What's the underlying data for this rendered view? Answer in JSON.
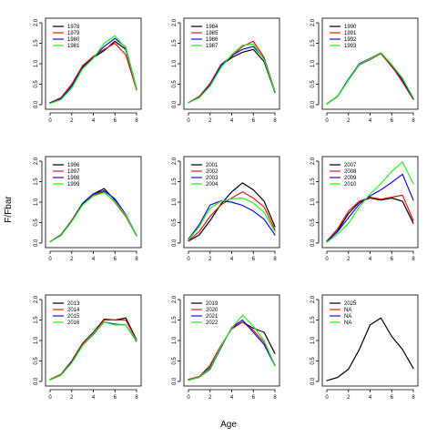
{
  "labels": {
    "xlabel": "Age",
    "ylabel": "F/Fbar"
  },
  "chart_data": {
    "type": "line",
    "grid": false,
    "legend_placement": "top-left",
    "xlabel": "Age",
    "ylabel": "F/Fbar",
    "xlim": [
      0,
      8
    ],
    "ylim": [
      0,
      2
    ],
    "x_ticks": [
      "0",
      "2",
      "4",
      "6",
      "8"
    ],
    "y_ticks": [
      "0.0",
      "0.5",
      "1.0",
      "1.5",
      "2.0"
    ],
    "x": [
      0,
      1,
      2,
      3,
      4,
      5,
      6,
      7,
      8
    ],
    "colors": [
      "#000000",
      "#e8120c",
      "#1010ee",
      "#22ee22"
    ],
    "panels": [
      {
        "series": [
          {
            "name": "1978",
            "values": [
              0.05,
              0.15,
              0.48,
              0.93,
              1.15,
              1.32,
              1.55,
              1.35,
              0.38
            ]
          },
          {
            "name": "1979",
            "values": [
              0.05,
              0.17,
              0.5,
              0.95,
              1.18,
              1.35,
              1.5,
              1.22,
              0.36
            ]
          },
          {
            "name": "1980",
            "values": [
              0.04,
              0.14,
              0.45,
              0.9,
              1.15,
              1.42,
              1.62,
              1.4,
              0.4
            ]
          },
          {
            "name": "1981",
            "values": [
              0.03,
              0.12,
              0.4,
              0.87,
              1.13,
              1.5,
              1.68,
              1.38,
              0.4
            ]
          }
        ]
      },
      {
        "series": [
          {
            "name": "1984",
            "values": [
              0.05,
              0.2,
              0.5,
              0.95,
              1.15,
              1.28,
              1.35,
              1.05,
              0.3
            ]
          },
          {
            "name": "1985",
            "values": [
              0.05,
              0.2,
              0.52,
              0.98,
              1.18,
              1.42,
              1.55,
              1.15,
              0.33
            ]
          },
          {
            "name": "1986",
            "values": [
              0.05,
              0.18,
              0.48,
              0.95,
              1.2,
              1.35,
              1.42,
              1.12,
              0.3
            ]
          },
          {
            "name": "1987",
            "values": [
              0.05,
              0.17,
              0.45,
              0.9,
              1.22,
              1.45,
              1.48,
              1.1,
              0.32
            ]
          }
        ]
      },
      {
        "series": [
          {
            "name": "1990",
            "values": [
              0.02,
              0.2,
              0.62,
              0.98,
              1.12,
              1.25,
              0.93,
              0.6,
              0.15
            ]
          },
          {
            "name": "1991",
            "values": [
              0.02,
              0.2,
              0.6,
              0.97,
              1.1,
              1.25,
              0.95,
              0.55,
              0.13
            ]
          },
          {
            "name": "1992",
            "values": [
              0.02,
              0.21,
              0.62,
              1.0,
              1.13,
              1.27,
              0.98,
              0.6,
              0.15
            ]
          },
          {
            "name": "1993",
            "values": [
              0.02,
              0.2,
              0.6,
              0.98,
              1.12,
              1.27,
              0.98,
              0.65,
              0.17
            ]
          }
        ]
      },
      {
        "series": [
          {
            "name": "1996",
            "values": [
              0.03,
              0.2,
              0.55,
              0.97,
              1.2,
              1.33,
              1.05,
              0.67,
              0.18
            ]
          },
          {
            "name": "1997",
            "values": [
              0.03,
              0.2,
              0.55,
              0.95,
              1.17,
              1.25,
              1.0,
              0.65,
              0.18
            ]
          },
          {
            "name": "1998",
            "values": [
              0.03,
              0.19,
              0.53,
              0.95,
              1.2,
              1.28,
              1.08,
              0.7,
              0.19
            ]
          },
          {
            "name": "1999",
            "values": [
              0.03,
              0.18,
              0.52,
              0.93,
              1.15,
              1.23,
              1.02,
              0.68,
              0.19
            ]
          }
        ]
      },
      {
        "series": [
          {
            "name": "2001",
            "values": [
              0.05,
              0.2,
              0.55,
              0.95,
              1.25,
              1.47,
              1.3,
              1.02,
              0.4
            ]
          },
          {
            "name": "2002",
            "values": [
              0.06,
              0.28,
              0.65,
              0.93,
              1.1,
              1.25,
              1.1,
              0.88,
              0.32
            ]
          },
          {
            "name": "2003",
            "values": [
              0.1,
              0.45,
              0.93,
              1.03,
              1.0,
              0.92,
              0.78,
              0.58,
              0.2
            ]
          },
          {
            "name": "2004",
            "values": [
              0.08,
              0.4,
              0.85,
              1.02,
              1.08,
              1.1,
              0.98,
              0.75,
              0.28
            ]
          }
        ]
      },
      {
        "series": [
          {
            "name": "2007",
            "values": [
              0.03,
              0.3,
              0.72,
              1.0,
              1.1,
              1.05,
              1.1,
              1.02,
              0.48
            ]
          },
          {
            "name": "2008",
            "values": [
              0.05,
              0.35,
              0.78,
              1.02,
              1.12,
              1.07,
              1.12,
              1.17,
              0.55
            ]
          },
          {
            "name": "2009",
            "values": [
              0.04,
              0.28,
              0.62,
              0.95,
              1.15,
              1.3,
              1.48,
              1.68,
              1.05
            ]
          },
          {
            "name": "2010",
            "values": [
              0.02,
              0.22,
              0.48,
              0.88,
              1.2,
              1.45,
              1.75,
              1.98,
              1.45
            ]
          }
        ]
      },
      {
        "series": [
          {
            "name": "2013",
            "values": [
              0.05,
              0.17,
              0.5,
              0.93,
              1.2,
              1.52,
              1.5,
              1.55,
              1.02
            ]
          },
          {
            "name": "2014",
            "values": [
              0.05,
              0.17,
              0.5,
              0.92,
              1.18,
              1.5,
              1.5,
              1.5,
              1.0
            ]
          },
          {
            "name": "2015",
            "values": [
              0.04,
              0.15,
              0.47,
              0.88,
              1.15,
              1.45,
              1.4,
              1.38,
              0.98
            ]
          },
          {
            "name": "2016",
            "values": [
              0.04,
              0.15,
              0.45,
              0.87,
              1.17,
              1.45,
              1.38,
              1.38,
              1.0
            ]
          }
        ]
      },
      {
        "series": [
          {
            "name": "2019",
            "values": [
              0.05,
              0.1,
              0.35,
              0.85,
              1.3,
              1.45,
              1.3,
              1.2,
              0.68
            ]
          },
          {
            "name": "2020",
            "values": [
              0.05,
              0.12,
              0.4,
              0.88,
              1.28,
              1.45,
              1.25,
              0.95,
              0.4
            ]
          },
          {
            "name": "2021",
            "values": [
              0.03,
              0.1,
              0.3,
              0.82,
              1.32,
              1.5,
              1.2,
              0.9,
              0.38
            ]
          },
          {
            "name": "2022",
            "values": [
              0.03,
              0.1,
              0.32,
              0.85,
              1.3,
              1.62,
              1.35,
              1.0,
              0.38
            ]
          }
        ]
      },
      {
        "series": [
          {
            "name": "2025",
            "values": [
              0.02,
              0.1,
              0.3,
              0.78,
              1.38,
              1.55,
              1.1,
              0.78,
              0.32
            ]
          },
          {
            "name": "NA",
            "values": []
          },
          {
            "name": "NA",
            "values": []
          },
          {
            "name": "NA",
            "values": []
          }
        ]
      }
    ]
  }
}
